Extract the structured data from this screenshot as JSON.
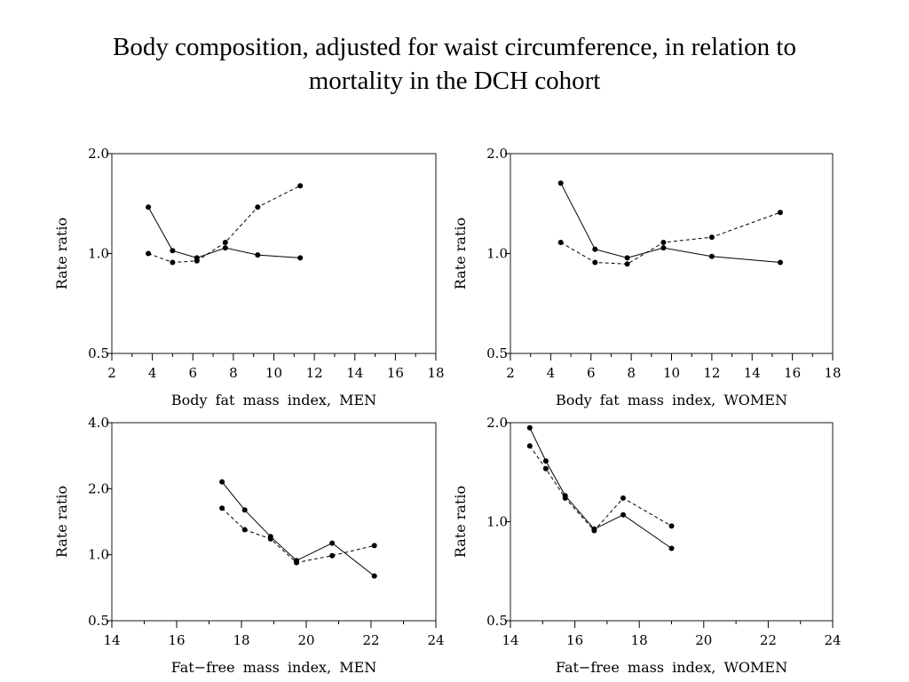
{
  "title_line1": "Body composition, adjusted for waist circumference, in relation to",
  "title_line2": "mortality in the DCH cohort",
  "chart_data": [
    {
      "type": "line",
      "xlabel": "Body fat mass index, MEN",
      "ylabel": "Rate ratio",
      "xlim": [
        2,
        18
      ],
      "xticks": [
        2,
        4,
        6,
        8,
        10,
        12,
        14,
        16,
        18
      ],
      "ylim": [
        0.5,
        2.0
      ],
      "yscale": "log",
      "yticks": [
        0.5,
        1.0,
        2.0
      ],
      "ytick_labels": [
        "0.5",
        "1.0",
        "2.0"
      ],
      "grid": false,
      "series": [
        {
          "style": "solid",
          "x": [
            3.8,
            5.0,
            6.2,
            7.6,
            9.2,
            11.3
          ],
          "y": [
            1.38,
            1.02,
            0.97,
            1.04,
            0.99,
            0.97
          ]
        },
        {
          "style": "dashed",
          "x": [
            3.8,
            5.0,
            6.2,
            7.6,
            9.2,
            11.3
          ],
          "y": [
            1.0,
            0.94,
            0.95,
            1.08,
            1.38,
            1.6
          ]
        }
      ]
    },
    {
      "type": "line",
      "xlabel": "Body fat mass index, WOMEN",
      "ylabel": "Rate ratio",
      "xlim": [
        2,
        18
      ],
      "xticks": [
        2,
        4,
        6,
        8,
        10,
        12,
        14,
        16,
        18
      ],
      "ylim": [
        0.5,
        2.0
      ],
      "yscale": "log",
      "yticks": [
        0.5,
        1.0,
        2.0
      ],
      "ytick_labels": [
        "0.5",
        "1.0",
        "2.0"
      ],
      "grid": false,
      "series": [
        {
          "style": "solid",
          "x": [
            4.5,
            6.2,
            7.8,
            9.6,
            12.0,
            15.4
          ],
          "y": [
            1.63,
            1.03,
            0.97,
            1.04,
            0.98,
            0.94
          ]
        },
        {
          "style": "dashed",
          "x": [
            4.5,
            6.2,
            7.8,
            9.6,
            12.0,
            15.4
          ],
          "y": [
            1.08,
            0.94,
            0.93,
            1.08,
            1.12,
            1.33
          ]
        }
      ]
    },
    {
      "type": "line",
      "xlabel": "Fat−free mass index, MEN",
      "ylabel": "Rate ratio",
      "xlim": [
        14,
        24
      ],
      "xticks": [
        14,
        16,
        18,
        20,
        22,
        24
      ],
      "ylim": [
        0.5,
        4.0
      ],
      "yscale": "log",
      "yticks": [
        0.5,
        1.0,
        2.0,
        4.0
      ],
      "ytick_labels": [
        "0.5",
        "1.0",
        "2.0",
        "4.0"
      ],
      "grid": false,
      "series": [
        {
          "style": "solid",
          "x": [
            17.4,
            18.1,
            18.9,
            19.7,
            20.8,
            22.1
          ],
          "y": [
            2.15,
            1.6,
            1.21,
            0.94,
            1.13,
            0.8
          ]
        },
        {
          "style": "dashed",
          "x": [
            17.4,
            18.1,
            18.9,
            19.7,
            20.8,
            22.1
          ],
          "y": [
            1.63,
            1.3,
            1.18,
            0.92,
            0.99,
            1.1
          ]
        }
      ]
    },
    {
      "type": "line",
      "xlabel": "Fat−free mass index, WOMEN",
      "ylabel": "Rate ratio",
      "xlim": [
        14,
        24
      ],
      "xticks": [
        14,
        16,
        18,
        20,
        22,
        24
      ],
      "ylim": [
        0.5,
        2.0
      ],
      "yscale": "log",
      "yticks": [
        0.5,
        1.0,
        2.0
      ],
      "ytick_labels": [
        "0.5",
        "1.0",
        "2.0"
      ],
      "grid": false,
      "series": [
        {
          "style": "solid",
          "x": [
            14.6,
            15.1,
            15.7,
            16.6,
            17.5,
            19.0
          ],
          "y": [
            1.93,
            1.53,
            1.2,
            0.95,
            1.05,
            0.83
          ]
        },
        {
          "style": "dashed",
          "x": [
            14.6,
            15.1,
            15.7,
            16.6,
            17.5,
            19.0
          ],
          "y": [
            1.7,
            1.45,
            1.18,
            0.94,
            1.18,
            0.97
          ]
        }
      ]
    }
  ]
}
